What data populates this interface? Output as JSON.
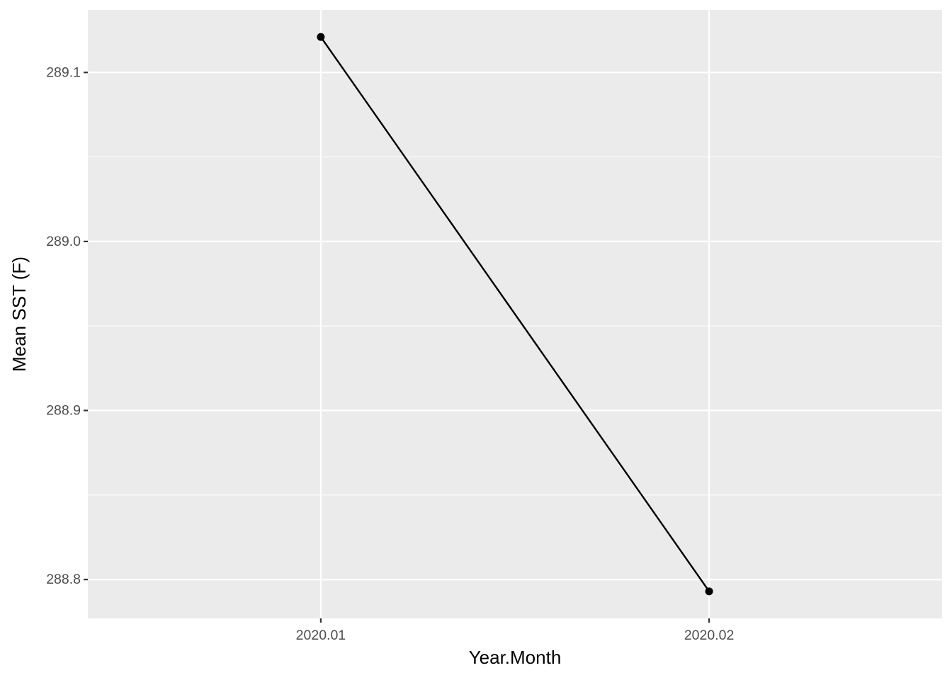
{
  "chart_data": {
    "type": "line",
    "title": "",
    "xlabel": "Year.Month",
    "ylabel": "Mean SST (F)",
    "categories": [
      "2020.01",
      "2020.02"
    ],
    "series": [
      {
        "values": [
          289.121,
          288.793
        ]
      }
    ],
    "ylim": [
      288.777,
      289.137
    ],
    "y_ticks": [
      "288.8",
      "288.9",
      "289.0",
      "289.1"
    ],
    "y_tick_values": [
      288.8,
      288.9,
      289.0,
      289.1
    ],
    "grid": true,
    "legend": "none",
    "colors": {
      "panel": "#ebebeb",
      "grid": "#ffffff",
      "line": "#000000",
      "tick": "#333333"
    }
  }
}
